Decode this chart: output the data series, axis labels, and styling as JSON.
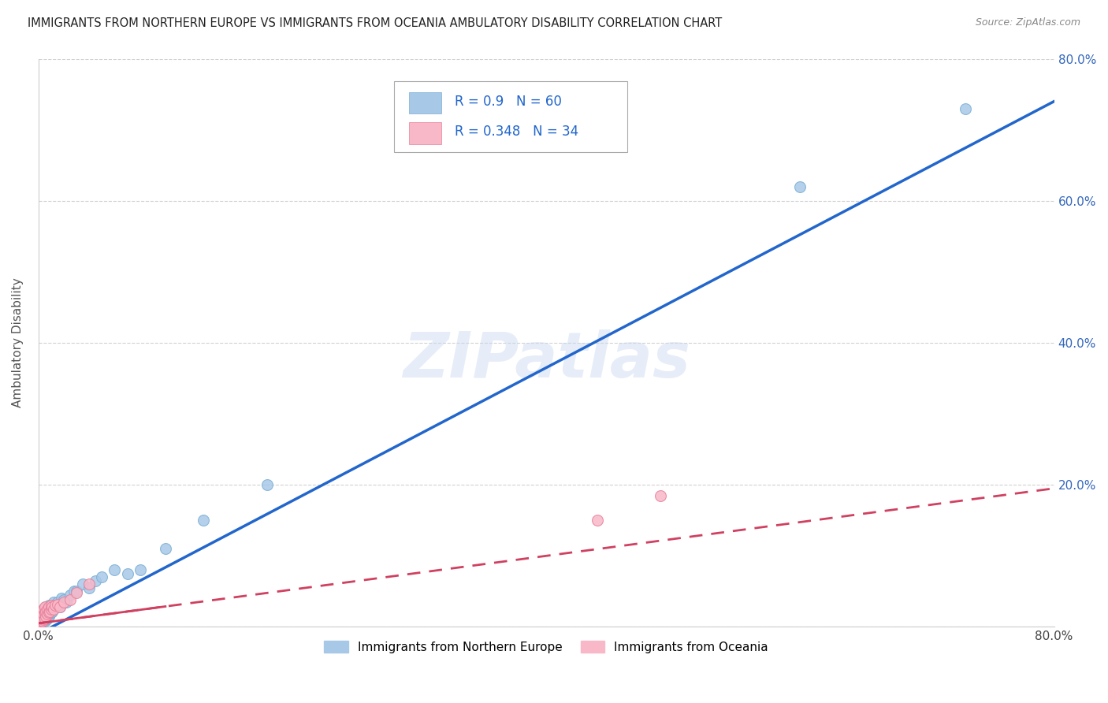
{
  "title": "IMMIGRANTS FROM NORTHERN EUROPE VS IMMIGRANTS FROM OCEANIA AMBULATORY DISABILITY CORRELATION CHART",
  "source": "Source: ZipAtlas.com",
  "ylabel": "Ambulatory Disability",
  "xlim": [
    0,
    0.8
  ],
  "ylim": [
    0,
    0.8
  ],
  "xticks": [
    0.0,
    0.2,
    0.4,
    0.6,
    0.8
  ],
  "yticks": [
    0.0,
    0.2,
    0.4,
    0.6,
    0.8
  ],
  "xticklabels": [
    "0.0%",
    "",
    "",
    "",
    "80.0%"
  ],
  "right_yticklabels": [
    "",
    "20.0%",
    "40.0%",
    "60.0%",
    "80.0%"
  ],
  "series1_label": "Immigrants from Northern Europe",
  "series1_color": "#A8C8E8",
  "series1_edge_color": "#7BAFD4",
  "series1_line_color": "#2266CC",
  "series1_R": 0.9,
  "series1_N": 60,
  "series2_label": "Immigrants from Oceania",
  "series2_color": "#F8B8C8",
  "series2_edge_color": "#E8809A",
  "series2_line_color": "#D04060",
  "series2_R": 0.348,
  "series2_N": 34,
  "watermark": "ZIPatlas",
  "background_color": "#ffffff",
  "grid_color": "#cccccc",
  "series1_x": [
    0.001,
    0.001,
    0.002,
    0.002,
    0.002,
    0.002,
    0.003,
    0.003,
    0.003,
    0.003,
    0.003,
    0.004,
    0.004,
    0.004,
    0.004,
    0.005,
    0.005,
    0.005,
    0.005,
    0.006,
    0.006,
    0.006,
    0.006,
    0.007,
    0.007,
    0.007,
    0.008,
    0.008,
    0.008,
    0.009,
    0.009,
    0.01,
    0.01,
    0.01,
    0.011,
    0.012,
    0.012,
    0.013,
    0.014,
    0.015,
    0.016,
    0.017,
    0.018,
    0.02,
    0.022,
    0.025,
    0.028,
    0.03,
    0.035,
    0.04,
    0.045,
    0.05,
    0.06,
    0.07,
    0.08,
    0.1,
    0.13,
    0.18,
    0.6,
    0.73
  ],
  "series1_y": [
    0.005,
    0.008,
    0.01,
    0.012,
    0.005,
    0.015,
    0.008,
    0.012,
    0.018,
    0.022,
    0.007,
    0.01,
    0.015,
    0.02,
    0.025,
    0.008,
    0.015,
    0.02,
    0.025,
    0.01,
    0.015,
    0.022,
    0.028,
    0.012,
    0.018,
    0.025,
    0.015,
    0.02,
    0.03,
    0.018,
    0.025,
    0.02,
    0.025,
    0.03,
    0.022,
    0.025,
    0.035,
    0.028,
    0.03,
    0.035,
    0.032,
    0.028,
    0.04,
    0.038,
    0.035,
    0.045,
    0.05,
    0.05,
    0.06,
    0.055,
    0.065,
    0.07,
    0.08,
    0.075,
    0.08,
    0.11,
    0.15,
    0.2,
    0.62,
    0.73
  ],
  "series2_x": [
    0.001,
    0.001,
    0.002,
    0.002,
    0.002,
    0.003,
    0.003,
    0.003,
    0.004,
    0.004,
    0.004,
    0.005,
    0.005,
    0.005,
    0.006,
    0.006,
    0.007,
    0.007,
    0.008,
    0.008,
    0.009,
    0.01,
    0.01,
    0.011,
    0.012,
    0.013,
    0.015,
    0.017,
    0.02,
    0.025,
    0.03,
    0.04,
    0.44,
    0.49
  ],
  "series2_y": [
    0.005,
    0.01,
    0.008,
    0.012,
    0.018,
    0.008,
    0.015,
    0.022,
    0.01,
    0.018,
    0.025,
    0.012,
    0.02,
    0.028,
    0.015,
    0.022,
    0.018,
    0.025,
    0.02,
    0.028,
    0.022,
    0.025,
    0.03,
    0.028,
    0.025,
    0.03,
    0.032,
    0.028,
    0.035,
    0.038,
    0.048,
    0.06,
    0.15,
    0.185
  ],
  "trend1_x0": 0.0,
  "trend1_y0": -0.01,
  "trend1_x1": 0.8,
  "trend1_y1": 0.74,
  "trend2_x0": 0.0,
  "trend2_y0": 0.005,
  "trend2_x1": 0.8,
  "trend2_y1": 0.195
}
